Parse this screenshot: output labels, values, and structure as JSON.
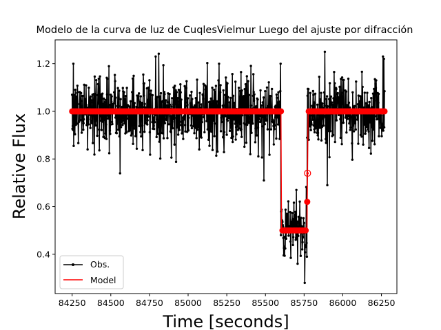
{
  "chart_data": {
    "type": "line",
    "title": "Modelo de la curva de luz de CuqlesVielmur Luego del ajuste por difracción",
    "xlabel": "Time [seconds]",
    "ylabel": "Relative Flux",
    "xlim": [
      84140,
      86350
    ],
    "ylim": [
      0.235,
      1.3
    ],
    "xticks": [
      84250,
      84500,
      84750,
      85000,
      85250,
      85500,
      85750,
      86000,
      86250
    ],
    "yticks": [
      0.4,
      0.6,
      0.8,
      1.0,
      1.2
    ],
    "xtick_labels": [
      "84250",
      "84500",
      "84750",
      "85000",
      "85250",
      "85500",
      "85750",
      "86000",
      "86250"
    ],
    "ytick_labels": [
      "0.4",
      "0.6",
      "0.8",
      "1.0",
      "1.2"
    ],
    "legend_position": "lower-left",
    "colors": {
      "observed": "#000000",
      "model": "#ff0000"
    },
    "series": [
      {
        "name": "Obs.",
        "style": "line-with-dots",
        "sampling_interval": 2,
        "x_range": [
          84250,
          86270
        ],
        "segments": [
          {
            "x_from": 84250,
            "x_to": 85600,
            "mean": 1.0,
            "noise_sd": 0.075
          },
          {
            "x_from": 85600,
            "x_to": 85770,
            "mean": 0.5,
            "noise_sd": 0.065
          },
          {
            "x_from": 85770,
            "x_to": 86270,
            "mean": 1.0,
            "noise_sd": 0.075
          }
        ],
        "extremes": [
          {
            "x": 84258,
            "y": 1.2
          },
          {
            "x": 84560,
            "y": 0.74
          },
          {
            "x": 84790,
            "y": 1.23
          },
          {
            "x": 85200,
            "y": 1.2
          },
          {
            "x": 85490,
            "y": 0.71
          },
          {
            "x": 85598,
            "y": 1.2
          },
          {
            "x": 85755,
            "y": 0.28
          },
          {
            "x": 85700,
            "y": 0.67
          },
          {
            "x": 85885,
            "y": 1.25
          },
          {
            "x": 85900,
            "y": 0.69
          },
          {
            "x": 86260,
            "y": 1.23
          }
        ]
      },
      {
        "name": "Model",
        "style": "line-with-circles",
        "sampling_interval": 10,
        "points": [
          {
            "x": 84250,
            "y": 1.0
          },
          {
            "x": 85600,
            "y": 1.0
          },
          {
            "x": 85604,
            "y": 0.5
          },
          {
            "x": 85768,
            "y": 0.5
          },
          {
            "x": 85772,
            "y": 0.74
          },
          {
            "x": 85776,
            "y": 1.0
          },
          {
            "x": 86270,
            "y": 1.0
          }
        ]
      }
    ]
  }
}
